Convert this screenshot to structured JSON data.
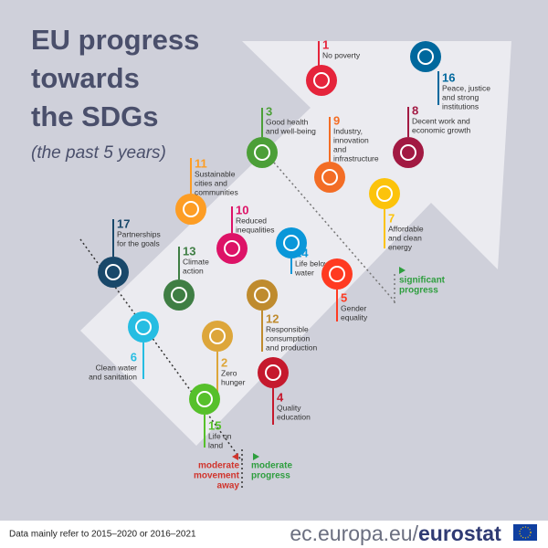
{
  "header": {
    "title": [
      "EU progress",
      "towards",
      "the SDGs"
    ],
    "subtitle": "(the past 5 years)"
  },
  "goals": [
    {
      "number": "1",
      "label": [
        "No poverty"
      ],
      "color": "#e5243b"
    },
    {
      "number": "16",
      "label": [
        "Peace, justice",
        "and strong",
        "institutions"
      ],
      "color": "#00689d"
    },
    {
      "number": "3",
      "label": [
        "Good health",
        "and well-being"
      ],
      "color": "#4c9f38"
    },
    {
      "number": "9",
      "label": [
        "Industry,",
        "innovation",
        "and",
        "infrastructure"
      ],
      "color": "#f36d25"
    },
    {
      "number": "8",
      "label": [
        "Decent work and",
        "economic growth"
      ],
      "color": "#a21942"
    },
    {
      "number": "11",
      "label": [
        "Sustainable",
        "cities and",
        "communities"
      ],
      "color": "#fd9d24"
    },
    {
      "number": "7",
      "label": [
        "Affordable",
        "and clean",
        "energy"
      ],
      "color": "#fcc30b"
    },
    {
      "number": "10",
      "label": [
        "Reduced",
        "inequalities"
      ],
      "color": "#dd1367"
    },
    {
      "number": "14",
      "label": [
        "Life below",
        "water"
      ],
      "color": "#0a97d9"
    },
    {
      "number": "17",
      "label": [
        "Partnerships",
        "for the goals"
      ],
      "color": "#19486a"
    },
    {
      "number": "13",
      "label": [
        "Climate",
        "action"
      ],
      "color": "#3f7e44"
    },
    {
      "number": "5",
      "label": [
        "Gender",
        "equality"
      ],
      "color": "#ff3a21"
    },
    {
      "number": "12",
      "label": [
        "Responsible",
        "consumption",
        "and production"
      ],
      "color": "#bf8b2e"
    },
    {
      "number": "6",
      "label": [
        "Clean water",
        "and sanitation"
      ],
      "color": "#26bde2"
    },
    {
      "number": "2",
      "label": [
        "Zero",
        "hunger"
      ],
      "color": "#dda63a"
    },
    {
      "number": "4",
      "label": [
        "Quality",
        "education"
      ],
      "color": "#c5192d"
    },
    {
      "number": "15",
      "label": [
        "Life on",
        "land"
      ],
      "color": "#56c02b"
    }
  ],
  "legend": {
    "significant": [
      "significant",
      "progress"
    ],
    "moderate": [
      "moderate",
      "progress"
    ],
    "away": [
      "moderate",
      "movement",
      "away"
    ]
  },
  "footer": {
    "note": "Data mainly refer to 2015–2020 or 2016–2021",
    "site": "ec.europa.eu/",
    "brand": "eurostat"
  }
}
